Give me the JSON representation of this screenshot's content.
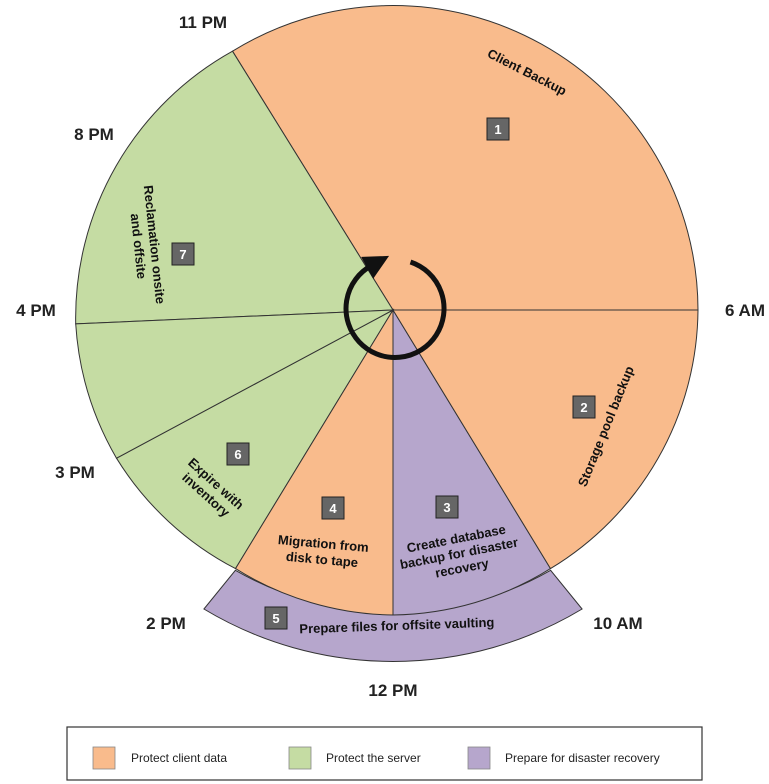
{
  "colors": {
    "client": "#f9bb8c",
    "server": "#c5dca3",
    "disaster": "#b6a6cc",
    "badge": "#666666",
    "stroke": "#333333"
  },
  "times": {
    "t11pm": "11 PM",
    "t8pm": "8 PM",
    "t4pm": "4 PM",
    "t3pm": "3 PM",
    "t2pm": "2 PM",
    "t12pm": "12 PM",
    "t10am": "10 AM",
    "t6am": "6 AM"
  },
  "tasks": [
    {
      "number": "1",
      "lines": [
        "Client Backup"
      ],
      "category": "client"
    },
    {
      "number": "2",
      "lines": [
        "Storage pool backup"
      ],
      "category": "client"
    },
    {
      "number": "3",
      "lines": [
        "Create database",
        "backup for disaster",
        "recovery"
      ],
      "category": "disaster"
    },
    {
      "number": "4",
      "lines": [
        "Migration from",
        "disk to tape"
      ],
      "category": "client"
    },
    {
      "number": "5",
      "lines": [
        "Prepare files for offsite vaulting"
      ],
      "category": "disaster"
    },
    {
      "number": "6",
      "lines": [
        "Expire with",
        "inventory"
      ],
      "category": "server"
    },
    {
      "number": "7",
      "lines": [
        "Reclamation onsite",
        "and offsite"
      ],
      "category": "server"
    }
  ],
  "legend": [
    {
      "label": "Protect client data",
      "color": "#f9bb8c"
    },
    {
      "label": "Protect the server",
      "color": "#c5dca3"
    },
    {
      "label": "Prepare for disaster recovery",
      "color": "#b6a6cc"
    }
  ]
}
